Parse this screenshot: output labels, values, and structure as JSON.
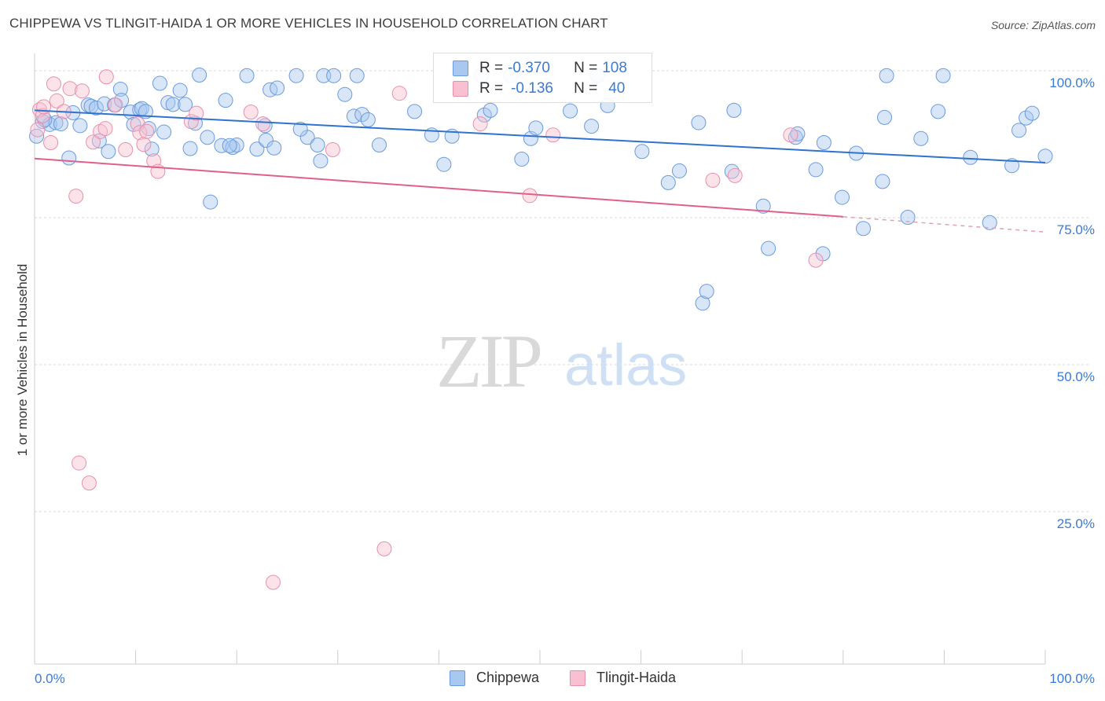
{
  "title": "CHIPPEWA VS TLINGIT-HAIDA 1 OR MORE VEHICLES IN HOUSEHOLD CORRELATION CHART",
  "source": "Source: ZipAtlas.com",
  "watermark": {
    "zip": "ZIP",
    "atlas": "atlas"
  },
  "legend": [
    {
      "name": "Chippewa",
      "r_label": "R =",
      "r_value": "-0.370",
      "n_label": "N =",
      "n_value": "108",
      "color": "#a8c8f0",
      "edge": "#6a9be0"
    },
    {
      "name": "Tlingit-Haida",
      "r_label": "R =",
      "r_value": "-0.136",
      "n_label": "N =",
      "n_value": "40",
      "color": "#f8c0d0",
      "edge": "#e890aa"
    }
  ],
  "chart_data": {
    "type": "scatter",
    "title": "CHIPPEWA VS TLINGIT-HAIDA 1 OR MORE VEHICLES IN HOUSEHOLD CORRELATION CHART",
    "xlabel": "",
    "ylabel": "1 or more Vehicles in Household",
    "xlim": [
      0,
      100
    ],
    "ylim": [
      0,
      102
    ],
    "x_tick_labels": [
      "0.0%",
      "100.0%"
    ],
    "y_ticks": [
      25,
      50,
      75,
      100
    ],
    "y_tick_labels": [
      "25.0%",
      "50.0%",
      "75.0%",
      "100.0%"
    ],
    "grid": "horizontal dashed",
    "legend_position": "top-center",
    "series": [
      {
        "name": "Chippewa",
        "color": "#6a9be0",
        "trend": {
          "x": [
            0,
            100
          ],
          "y": [
            94.2,
            85.3
          ]
        },
        "points": [
          [
            0.2,
            89.8
          ],
          [
            0.8,
            92.3
          ],
          [
            1.5,
            91.8
          ],
          [
            2.1,
            92.1
          ],
          [
            3.4,
            86.1
          ],
          [
            3.8,
            93.8
          ],
          [
            4.5,
            91.6
          ],
          [
            5.3,
            95.1
          ],
          [
            5.6,
            94.9
          ],
          [
            6.1,
            94.6
          ],
          [
            6.4,
            89.0
          ],
          [
            7.3,
            87.2
          ],
          [
            6.9,
            95.3
          ],
          [
            7.9,
            95.1
          ],
          [
            8.5,
            97.8
          ],
          [
            8.6,
            95.9
          ],
          [
            9.5,
            93.9
          ],
          [
            9.8,
            91.8
          ],
          [
            10.4,
            94.3
          ],
          [
            10.6,
            94.5
          ],
          [
            11.3,
            91.1
          ],
          [
            11.6,
            87.6
          ],
          [
            12.4,
            98.8
          ],
          [
            12.8,
            90.5
          ],
          [
            13.2,
            95.5
          ],
          [
            13.7,
            95.2
          ],
          [
            14.4,
            97.6
          ],
          [
            14.9,
            95.2
          ],
          [
            15.4,
            87.7
          ],
          [
            15.9,
            92.0
          ],
          [
            16.3,
            100.2
          ],
          [
            17.1,
            89.6
          ],
          [
            17.4,
            78.6
          ],
          [
            18.5,
            88.2
          ],
          [
            18.9,
            95.9
          ],
          [
            19.6,
            87.9
          ],
          [
            20.0,
            88.3
          ],
          [
            21.0,
            100.1
          ],
          [
            22.0,
            87.6
          ],
          [
            22.8,
            91.6
          ],
          [
            22.9,
            89.1
          ],
          [
            23.3,
            97.7
          ],
          [
            23.7,
            87.8
          ],
          [
            24.0,
            98.0
          ],
          [
            25.9,
            100.1
          ],
          [
            27.0,
            89.6
          ],
          [
            28.0,
            88.3
          ],
          [
            28.3,
            85.6
          ],
          [
            28.6,
            100.1
          ],
          [
            29.6,
            100.1
          ],
          [
            30.7,
            96.9
          ],
          [
            31.6,
            93.2
          ],
          [
            31.9,
            100.1
          ],
          [
            32.4,
            93.5
          ],
          [
            33.0,
            92.6
          ],
          [
            34.1,
            88.3
          ],
          [
            37.6,
            94.0
          ],
          [
            39.3,
            90.0
          ],
          [
            40.5,
            85.0
          ],
          [
            41.3,
            89.8
          ],
          [
            44.2,
            100.1
          ],
          [
            44.5,
            93.4
          ],
          [
            45.1,
            94.2
          ],
          [
            47.1,
            100.1
          ],
          [
            48.2,
            85.9
          ],
          [
            49.1,
            89.4
          ],
          [
            49.6,
            91.2
          ],
          [
            53.0,
            94.1
          ],
          [
            55.1,
            91.5
          ],
          [
            55.7,
            100.1
          ],
          [
            56.7,
            95.0
          ],
          [
            60.1,
            87.2
          ],
          [
            62.7,
            81.9
          ],
          [
            63.8,
            83.9
          ],
          [
            65.7,
            92.1
          ],
          [
            66.1,
            61.4
          ],
          [
            66.5,
            63.4
          ],
          [
            69.0,
            83.8
          ],
          [
            69.2,
            94.2
          ],
          [
            72.1,
            77.9
          ],
          [
            72.6,
            70.7
          ],
          [
            75.3,
            89.6
          ],
          [
            75.5,
            90.2
          ],
          [
            77.3,
            84.1
          ],
          [
            78.0,
            69.8
          ],
          [
            78.1,
            88.7
          ],
          [
            79.9,
            79.4
          ],
          [
            81.3,
            86.9
          ],
          [
            82.0,
            74.1
          ],
          [
            83.9,
            82.1
          ],
          [
            84.1,
            93.0
          ],
          [
            84.3,
            100.1
          ],
          [
            86.4,
            76.0
          ],
          [
            87.7,
            89.4
          ],
          [
            89.4,
            94.0
          ],
          [
            89.9,
            100.1
          ],
          [
            92.6,
            86.2
          ],
          [
            94.5,
            75.1
          ],
          [
            96.7,
            84.8
          ],
          [
            97.4,
            90.8
          ],
          [
            98.1,
            92.9
          ],
          [
            98.7,
            93.7
          ],
          [
            100.0,
            86.4
          ],
          [
            1.0,
            92.6
          ],
          [
            2.6,
            91.9
          ],
          [
            11.0,
            94.0
          ],
          [
            19.3,
            88.2
          ],
          [
            26.3,
            91.0
          ]
        ]
      },
      {
        "name": "Tlingit-Haida",
        "color": "#e890aa",
        "trend": {
          "x": [
            0,
            80.0
          ],
          "y": [
            86.0,
            76.1
          ]
        },
        "trend_dashed": {
          "x": [
            80.0,
            100
          ],
          "y": [
            76.1,
            73.5
          ]
        },
        "points": [
          [
            0.3,
            90.9
          ],
          [
            0.5,
            94.3
          ],
          [
            0.8,
            93.3
          ],
          [
            1.6,
            88.7
          ],
          [
            1.9,
            98.7
          ],
          [
            2.2,
            95.8
          ],
          [
            2.9,
            94.0
          ],
          [
            3.5,
            97.9
          ],
          [
            4.1,
            79.6
          ],
          [
            4.4,
            34.2
          ],
          [
            4.7,
            97.5
          ],
          [
            5.4,
            30.8
          ],
          [
            5.8,
            88.8
          ],
          [
            6.5,
            90.6
          ],
          [
            7.0,
            91.1
          ],
          [
            7.1,
            99.9
          ],
          [
            8.0,
            95.1
          ],
          [
            9.0,
            87.5
          ],
          [
            10.2,
            91.9
          ],
          [
            10.4,
            90.4
          ],
          [
            10.8,
            88.4
          ],
          [
            11.1,
            90.6
          ],
          [
            11.8,
            85.6
          ],
          [
            12.2,
            83.8
          ],
          [
            15.5,
            92.3
          ],
          [
            16.0,
            93.7
          ],
          [
            21.4,
            93.9
          ],
          [
            22.6,
            91.9
          ],
          [
            23.6,
            13.9
          ],
          [
            29.5,
            87.5
          ],
          [
            34.6,
            19.6
          ],
          [
            36.1,
            97.1
          ],
          [
            44.1,
            91.9
          ],
          [
            49.0,
            79.7
          ],
          [
            51.3,
            90.0
          ],
          [
            67.1,
            82.3
          ],
          [
            69.3,
            83.1
          ],
          [
            74.8,
            90.0
          ],
          [
            77.3,
            68.7
          ],
          [
            0.9,
            94.8
          ]
        ]
      }
    ]
  }
}
